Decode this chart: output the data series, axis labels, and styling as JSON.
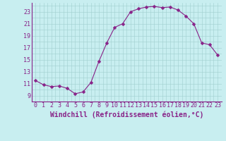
{
  "x": [
    0,
    1,
    2,
    3,
    4,
    5,
    6,
    7,
    8,
    9,
    10,
    11,
    12,
    13,
    14,
    15,
    16,
    17,
    18,
    19,
    20,
    21,
    22,
    23
  ],
  "y": [
    11.5,
    10.8,
    10.5,
    10.6,
    10.2,
    9.3,
    9.6,
    11.2,
    14.7,
    17.8,
    20.4,
    21.0,
    23.0,
    23.5,
    23.8,
    23.9,
    23.7,
    23.8,
    23.3,
    22.3,
    21.0,
    17.8,
    17.5,
    15.8
  ],
  "line_color": "#882288",
  "marker": "D",
  "marker_size": 2.5,
  "bg_color": "#c8eef0",
  "grid_color": "#a0cece",
  "xlabel": "Windchill (Refroidissement éolien,°C)",
  "xlabel_fontsize": 7,
  "tick_fontsize": 6,
  "yticks": [
    9,
    11,
    13,
    15,
    17,
    19,
    21,
    23
  ],
  "xticks": [
    0,
    1,
    2,
    3,
    4,
    5,
    6,
    7,
    8,
    9,
    10,
    11,
    12,
    13,
    14,
    15,
    16,
    17,
    18,
    19,
    20,
    21,
    22,
    23
  ],
  "ylim": [
    8.3,
    24.5
  ],
  "xlim": [
    -0.5,
    23.5
  ]
}
